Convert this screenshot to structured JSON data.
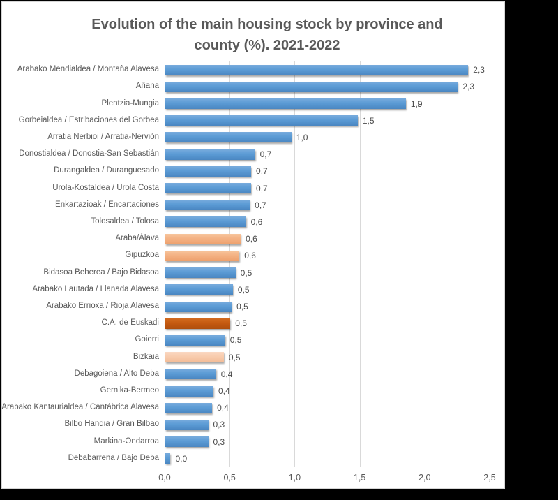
{
  "window": {
    "background_color": "#000000",
    "chart_background_color": "#ffffff",
    "chart_border_color": "#d6d6d6"
  },
  "chart_data": {
    "type": "bar",
    "orientation": "horizontal",
    "title": "Evolution of the main housing stock by province and county (%). 2021-2022",
    "title_lines": [
      "Evolution of the main housing stock by province and",
      "county (%). 2021-2022"
    ],
    "xlabel": "",
    "ylabel": "",
    "xlim": [
      0,
      2.5
    ],
    "x_ticks": [
      "0,0",
      "0,5",
      "1,0",
      "1,5",
      "2,0",
      "2,5"
    ],
    "x_tick_values": [
      0,
      0.5,
      1.0,
      1.5,
      2.0,
      2.5
    ],
    "grid": true,
    "legend": false,
    "categories": [
      "Arabako Mendialdea / Montaña Alavesa",
      "Añana",
      "Plentzia-Mungia",
      "Gorbeialdea / Estribaciones del Gorbea",
      "Arratia Nerbioi / Arratia-Nervión",
      "Donostialdea / Donostia-San Sebastián",
      "Durangaldea / Duranguesado",
      "Urola-Kostaldea / Urola Costa",
      "Enkartazioak / Encartaciones",
      "Tolosaldea / Tolosa",
      "Araba/Álava",
      "Gipuzkoa",
      "Bidasoa Beherea / Bajo Bidasoa",
      "Arabako Lautada / Llanada Alavesa",
      "Arabako Errioxa / Rioja Alavesa",
      "C.A. de Euskadi",
      "Goierri",
      "Bizkaia",
      "Debagoiena / Alto Deba",
      "Gernika-Bermeo",
      "Arabako Kantaurialdea / Cantábrica Alavesa",
      "Bilbo Handia / Gran Bilbao",
      "Markina-Ondarroa",
      "Debabarrena / Bajo Deba"
    ],
    "values": [
      2.33,
      2.25,
      1.85,
      1.48,
      0.97,
      0.69,
      0.66,
      0.66,
      0.65,
      0.62,
      0.58,
      0.57,
      0.54,
      0.52,
      0.51,
      0.5,
      0.46,
      0.45,
      0.39,
      0.37,
      0.36,
      0.33,
      0.33,
      0.04
    ],
    "value_labels": [
      "2,3",
      "2,3",
      "1,9",
      "1,5",
      "1,0",
      "0,7",
      "0,7",
      "0,7",
      "0,7",
      "0,6",
      "0,6",
      "0,6",
      "0,5",
      "0,5",
      "0,5",
      "0,5",
      "0,5",
      "0,5",
      "0,4",
      "0,4",
      "0,4",
      "0,3",
      "0,3",
      "0,0"
    ],
    "bar_color_keys": [
      "blue",
      "blue",
      "blue",
      "blue",
      "blue",
      "blue",
      "blue",
      "blue",
      "blue",
      "blue",
      "orange",
      "orange",
      "blue",
      "blue",
      "blue",
      "dark_orange",
      "blue",
      "light_orange",
      "blue",
      "blue",
      "blue",
      "blue",
      "blue",
      "blue"
    ],
    "palette": {
      "blue": "#5B9BD5",
      "orange": "#F4B183",
      "light_orange": "#F8CBAD",
      "dark_orange": "#C55A11"
    },
    "gridline_color": "#D9D9D9",
    "title_color": "#595959",
    "text_color": "#595959"
  }
}
